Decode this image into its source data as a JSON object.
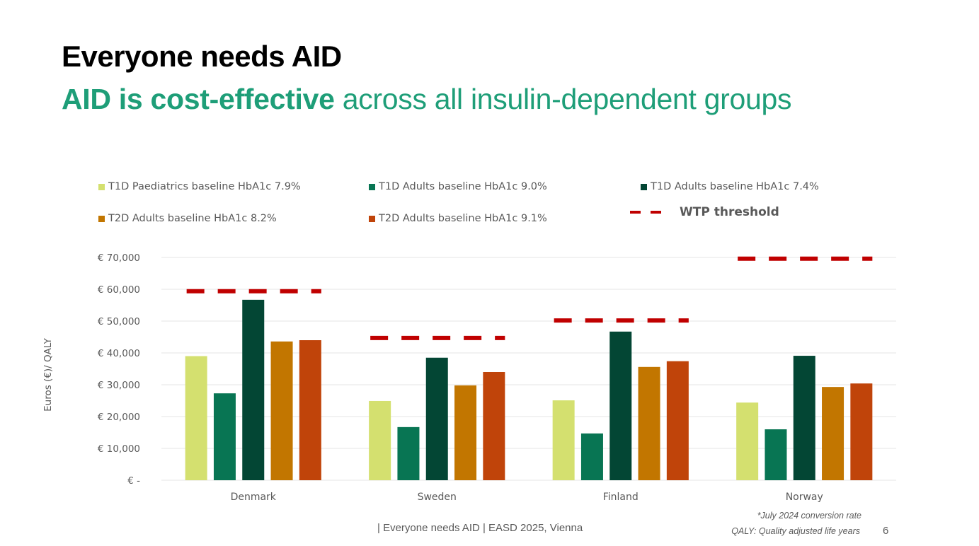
{
  "slide": {
    "title": "Everyone needs AID",
    "subtitle_bold": "AID is cost-effective",
    "subtitle_rest": " across all insulin-dependent groups",
    "footer": "| Everyone needs AID | EASD 2025, Vienna",
    "note_conversion": "*July 2024 conversion rate",
    "note_qaly": "QALY: Quality adjusted life years",
    "page_number": "6"
  },
  "colors": {
    "title_green": "#1e9e78",
    "wtp": "#c00000",
    "gridline": "#e6e6e6",
    "text_gray": "#595959"
  },
  "chart_data": {
    "type": "bar",
    "title": "",
    "xlabel": "",
    "ylabel": "Euros (€)/ QALY",
    "ylim": [
      0,
      70000
    ],
    "yticks": [
      0,
      10000,
      20000,
      30000,
      40000,
      50000,
      60000,
      70000
    ],
    "ytick_labels": [
      "€ -",
      "€ 10,000",
      "€ 20,000",
      "€ 30,000",
      "€ 40,000",
      "€ 50,000",
      "€ 60,000",
      "€ 70,000"
    ],
    "grid": true,
    "legend_position": "top",
    "categories": [
      "Denmark",
      "Sweden",
      "Finland",
      "Norway"
    ],
    "series": [
      {
        "name": "T1D Paediatrics baseline HbA1c 7.9%",
        "color": "#d4e06f",
        "values": [
          39000,
          24900,
          25100,
          24400
        ]
      },
      {
        "name": "T1D Adults baseline HbA1c 9.0%",
        "color": "#087553",
        "values": [
          27300,
          16700,
          14700,
          16000
        ]
      },
      {
        "name": "T1D Adults baseline HbA1c 7.4%",
        "color": "#034634",
        "values": [
          56700,
          38500,
          46700,
          39100
        ]
      },
      {
        "name": "T2D Adults baseline HbA1c 8.2%",
        "color": "#c27600",
        "values": [
          43600,
          29800,
          35600,
          29300
        ]
      },
      {
        "name": "T2D Adults baseline HbA1c 9.1%",
        "color": "#c0440a",
        "values": [
          44000,
          34000,
          37400,
          30400
        ]
      }
    ],
    "threshold": {
      "name": "WTP threshold",
      "color": "#c00000",
      "style": "dashed",
      "values": [
        59400,
        44700,
        50200,
        69600
      ]
    }
  }
}
